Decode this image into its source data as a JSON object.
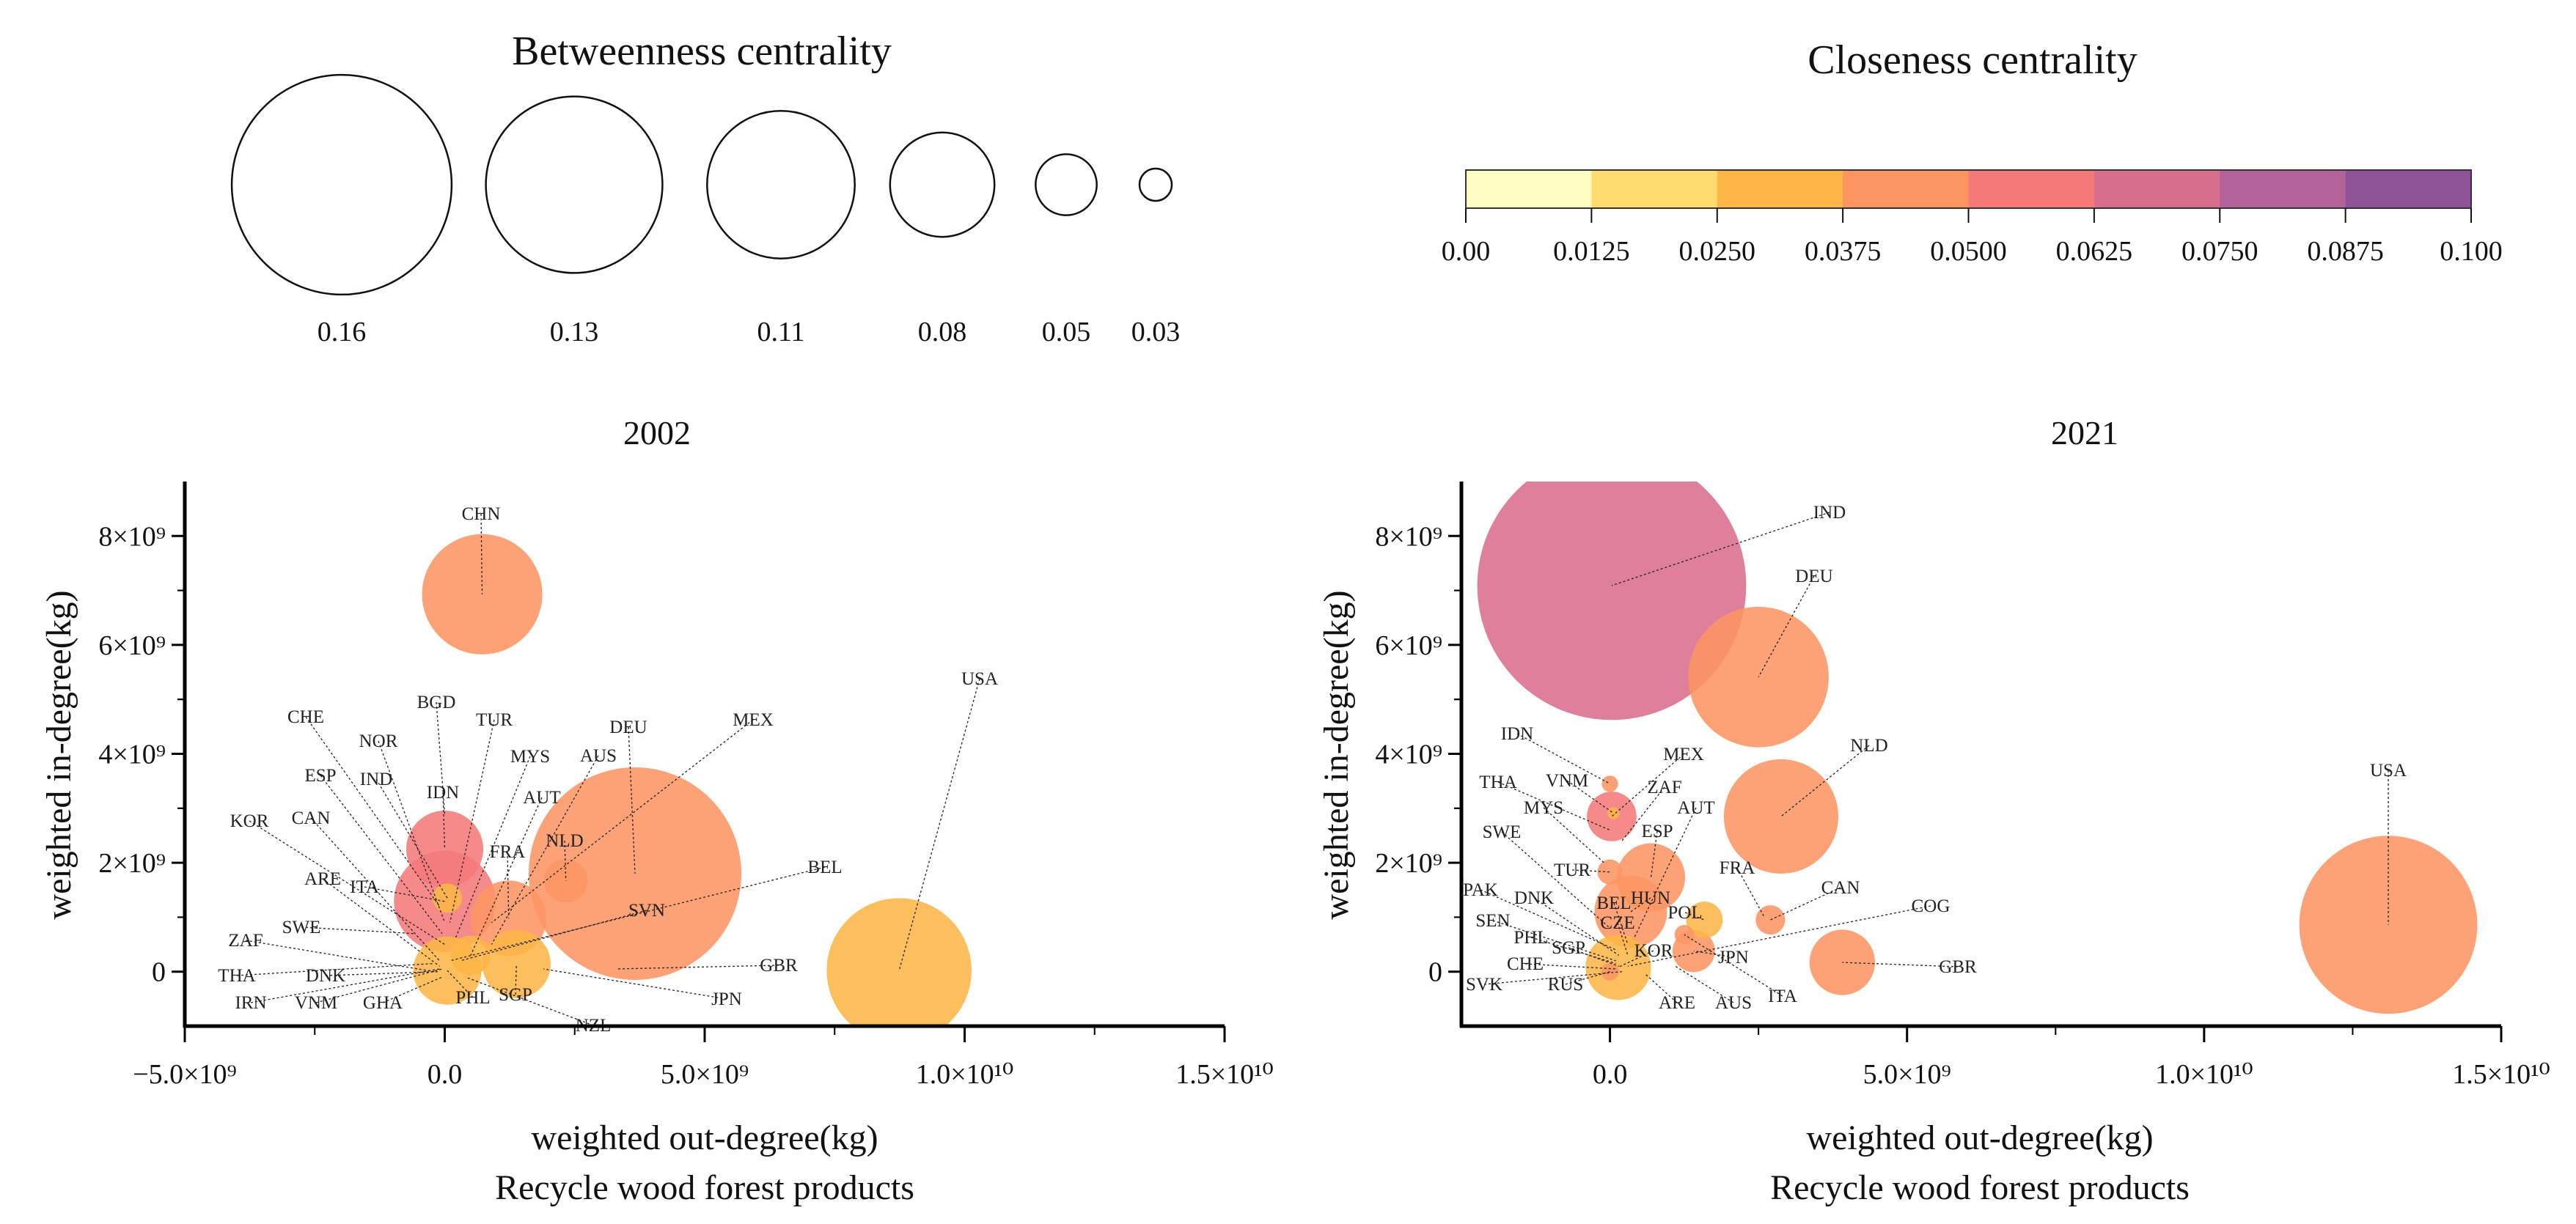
{
  "legends": {
    "size": {
      "title": "Betweenness centrality",
      "values": [
        "0.16",
        "0.13",
        "0.11",
        "0.08",
        "0.05",
        "0.03"
      ]
    },
    "color": {
      "title": "Closeness centrality",
      "ticks": [
        "0.00",
        "0.0125",
        "0.0250",
        "0.0375",
        "0.0500",
        "0.0625",
        "0.0750",
        "0.0875",
        "0.100"
      ],
      "colors": [
        "#fefcc0",
        "#fedc70",
        "#fdb647",
        "#fd9563",
        "#f47a7a",
        "#d96d8e",
        "#b4629a",
        "#8f5299"
      ]
    }
  },
  "chart_data": [
    {
      "type": "scatter",
      "title": "2002",
      "xlabel": "weighted out-degree(kg)",
      "subtitle": "Recycle wood forest products",
      "ylabel": "weighted in-degree(kg)",
      "xlim": [
        -5000000000.0,
        15000000000.0
      ],
      "ylim": [
        -1000000000.0,
        9000000000.0
      ],
      "xticks": [
        {
          "v": -5000000000.0,
          "t": "−5.0×10⁹"
        },
        {
          "v": 0,
          "t": "0.0"
        },
        {
          "v": 5000000000.0,
          "t": "5.0×10⁹"
        },
        {
          "v": 10000000000.0,
          "t": "1.0×10¹⁰"
        },
        {
          "v": 15000000000.0,
          "t": "1.5×10¹⁰"
        }
      ],
      "yticks": [
        {
          "v": 0,
          "t": "0"
        },
        {
          "v": 2000000000.0,
          "t": "2×10⁹"
        },
        {
          "v": 4000000000.0,
          "t": "4×10⁹"
        },
        {
          "v": 6000000000.0,
          "t": "6×10⁹"
        },
        {
          "v": 8000000000.0,
          "t": "8×10⁹"
        }
      ],
      "points": [
        {
          "label": "DEU",
          "x": 3660000000.0,
          "y": 1800000000.0,
          "betweenness": 0.155,
          "closeness": 0.045
        },
        {
          "label": "USA",
          "x": 8740000000.0,
          "y": 20000000.0,
          "betweenness": 0.108,
          "closeness": 0.032
        },
        {
          "label": "CHN",
          "x": 720000000.0,
          "y": 6930000000.0,
          "betweenness": 0.091,
          "closeness": 0.045
        },
        {
          "label": "ITA",
          "x": 0.0,
          "y": 1290000000.0,
          "betweenness": 0.078,
          "closeness": 0.055
        },
        {
          "label": "IDN",
          "x": 0.0,
          "y": 2250000000.0,
          "betweenness": 0.061,
          "closeness": 0.055
        },
        {
          "label": "FRA",
          "x": 1230000000.0,
          "y": 980000000.0,
          "betweenness": 0.06,
          "closeness": 0.045
        },
        {
          "label": "SGP",
          "x": 1380000000.0,
          "y": 140000000.0,
          "betweenness": 0.055,
          "closeness": 0.03
        },
        {
          "label": "PHL",
          "x": 50000000.0,
          "y": 20000000.0,
          "betweenness": 0.055,
          "closeness": 0.03
        },
        {
          "label": "NLD",
          "x": 2330000000.0,
          "y": 1670000000.0,
          "betweenness": 0.038,
          "closeness": 0.045
        },
        {
          "label": "AUT",
          "x": 500000000.0,
          "y": 300000000.0,
          "betweenness": 0.035,
          "closeness": 0.03
        },
        {
          "label": "IND",
          "x": 50000000.0,
          "y": 1350000000.0,
          "betweenness": 0.028,
          "closeness": 0.03
        },
        {
          "label": "BGD",
          "x": 0.0,
          "y": 2900000000.0,
          "betweenness": 0.0,
          "closeness": 0.03
        },
        {
          "label": "CHE",
          "x": -100000000.0,
          "y": 1200000000.0,
          "betweenness": 0.0,
          "closeness": 0.03
        },
        {
          "label": "NOR",
          "x": 0.0,
          "y": 900000000.0,
          "betweenness": 0.0,
          "closeness": 0.03
        },
        {
          "label": "TUR",
          "x": 100000000.0,
          "y": 900000000.0,
          "betweenness": 0.0,
          "closeness": 0.03
        },
        {
          "label": "MYS",
          "x": 200000000.0,
          "y": 600000000.0,
          "betweenness": 0.0,
          "closeness": 0.03
        },
        {
          "label": "AUS",
          "x": 900000000.0,
          "y": 500000000.0,
          "betweenness": 0.0,
          "closeness": 0.03
        },
        {
          "label": "MEX",
          "x": 900000000.0,
          "y": 900000000.0,
          "betweenness": 0.0,
          "closeness": 0.03
        },
        {
          "label": "ESP",
          "x": -50000000.0,
          "y": 700000000.0,
          "betweenness": 0.0,
          "closeness": 0.03
        },
        {
          "label": "KOR",
          "x": 0.0,
          "y": 500000000.0,
          "betweenness": 0.0,
          "closeness": 0.03
        },
        {
          "label": "CAN",
          "x": -100000000.0,
          "y": 200000000.0,
          "betweenness": 0.0,
          "closeness": 0.03
        },
        {
          "label": "ARE",
          "x": -100000000.0,
          "y": 100000000.0,
          "betweenness": 0.0,
          "closeness": 0.03
        },
        {
          "label": "BEL",
          "x": 100000000.0,
          "y": 200000000.0,
          "betweenness": 0.0,
          "closeness": 0.03
        },
        {
          "label": "SVN",
          "x": 300000000.0,
          "y": 200000000.0,
          "betweenness": 0.0,
          "closeness": 0.03
        },
        {
          "label": "SWE",
          "x": -600000000.0,
          "y": 700000000.0,
          "betweenness": 0.0,
          "closeness": 0.03
        },
        {
          "label": "ZAF",
          "x": -200000000.0,
          "y": 0.0,
          "betweenness": 0.0,
          "closeness": 0.03
        },
        {
          "label": "GBR",
          "x": 3300000000.0,
          "y": 50000000.0,
          "betweenness": 0.0,
          "closeness": 0.03
        },
        {
          "label": "THA",
          "x": -200000000.0,
          "y": 150000000.0,
          "betweenness": 0.0,
          "closeness": 0.03
        },
        {
          "label": "DNK",
          "x": -100000000.0,
          "y": 0.0,
          "betweenness": 0.0,
          "closeness": 0.03
        },
        {
          "label": "JPN",
          "x": 1900000000.0,
          "y": 50000000.0,
          "betweenness": 0.0,
          "closeness": 0.03
        },
        {
          "label": "IRN",
          "x": -100000000.0,
          "y": 50000000.0,
          "betweenness": 0.0,
          "closeness": 0.03
        },
        {
          "label": "VNM",
          "x": -50000000.0,
          "y": 50000000.0,
          "betweenness": 0.0,
          "closeness": 0.03
        },
        {
          "label": "GHA",
          "x": -50000000.0,
          "y": -100000000.0,
          "betweenness": 0.0,
          "closeness": 0.03
        },
        {
          "label": "NZL",
          "x": 400000000.0,
          "y": -100000000.0,
          "betweenness": 0.0,
          "closeness": 0.03
        }
      ]
    },
    {
      "type": "scatter",
      "title": "2021",
      "xlabel": "weighted out-degree(kg)",
      "subtitle": "Recycle wood forest products",
      "ylabel": "weighted in-degree(kg)",
      "xlim": [
        -2500000000.0,
        15000000000.0
      ],
      "ylim": [
        -1000000000.0,
        9000000000.0
      ],
      "xticks": [
        {
          "v": 0,
          "t": "0.0"
        },
        {
          "v": 5000000000.0,
          "t": "5.0×10⁹"
        },
        {
          "v": 10000000000.0,
          "t": "1.0×10¹⁰"
        },
        {
          "v": 15000000000.0,
          "t": "1.5×10¹⁰"
        }
      ],
      "yticks": [
        {
          "v": 0,
          "t": "0"
        },
        {
          "v": 2000000000.0,
          "t": "2×10⁹"
        },
        {
          "v": 4000000000.0,
          "t": "4×10⁹"
        },
        {
          "v": 6000000000.0,
          "t": "6×10⁹"
        },
        {
          "v": 8000000000.0,
          "t": "8×10⁹"
        }
      ],
      "points": [
        {
          "label": "IND",
          "x": 30000000.0,
          "y": 7090000000.0,
          "betweenness": 0.194,
          "closeness": 0.068
        },
        {
          "label": "USA",
          "x": 13100000000.0,
          "y": 860000000.0,
          "betweenness": 0.131,
          "closeness": 0.045
        },
        {
          "label": "DEU",
          "x": 2500000000.0,
          "y": 5410000000.0,
          "betweenness": 0.105,
          "closeness": 0.045
        },
        {
          "label": "NLD",
          "x": 2880000000.0,
          "y": 2850000000.0,
          "betweenness": 0.087,
          "closeness": 0.045
        },
        {
          "label": "ESP",
          "x": 690000000.0,
          "y": 1730000000.0,
          "betweenness": 0.055,
          "closeness": 0.045
        },
        {
          "label": "HUN",
          "x": 350000000.0,
          "y": 1100000000.0,
          "betweenness": 0.058,
          "closeness": 0.045
        },
        {
          "label": "GBR",
          "x": 3910000000.0,
          "y": 170000000.0,
          "betweenness": 0.053,
          "closeness": 0.045
        },
        {
          "label": "KOR",
          "x": 140000000.0,
          "y": 80000000.0,
          "betweenness": 0.053,
          "closeness": 0.032
        },
        {
          "label": "MEX",
          "x": 30000000.0,
          "y": 2850000000.0,
          "betweenness": 0.042,
          "closeness": 0.055
        },
        {
          "label": "JPN",
          "x": 1410000000.0,
          "y": 380000000.0,
          "betweenness": 0.037,
          "closeness": 0.045
        },
        {
          "label": "POL",
          "x": 1590000000.0,
          "y": 950000000.0,
          "betweenness": 0.033,
          "closeness": 0.032
        },
        {
          "label": "CAN",
          "x": 2700000000.0,
          "y": 950000000.0,
          "betweenness": 0.028,
          "closeness": 0.045
        },
        {
          "label": "TUR",
          "x": 0.0,
          "y": 1830000000.0,
          "betweenness": 0.025,
          "closeness": 0.045
        },
        {
          "label": "ITA",
          "x": 1250000000.0,
          "y": 680000000.0,
          "betweenness": 0.021,
          "closeness": 0.045
        },
        {
          "label": "RUS",
          "x": 0.0,
          "y": 0.0,
          "betweenness": 0.02,
          "closeness": 0.045
        },
        {
          "label": "IDN",
          "x": 0.0,
          "y": 3450000000.0,
          "betweenness": 0.019,
          "closeness": 0.045
        },
        {
          "label": "VNM",
          "x": 60000000.0,
          "y": 2910000000.0,
          "betweenness": 0.016,
          "closeness": 0.032
        },
        {
          "label": "FRA",
          "x": 2600000000.0,
          "y": 1000000000.0,
          "betweenness": 0.0,
          "closeness": 0.045
        },
        {
          "label": "THA",
          "x": 0.0,
          "y": 2600000000.0,
          "betweenness": 0.0,
          "closeness": 0.045
        },
        {
          "label": "ZAF",
          "x": 200000000.0,
          "y": 2400000000.0,
          "betweenness": 0.0,
          "closeness": 0.045
        },
        {
          "label": "MYS",
          "x": -100000000.0,
          "y": 2000000000.0,
          "betweenness": 0.0,
          "closeness": 0.045
        },
        {
          "label": "AUT",
          "x": 400000000.0,
          "y": 600000000.0,
          "betweenness": 0.0,
          "closeness": 0.045
        },
        {
          "label": "SWE",
          "x": 0.0,
          "y": 800000000.0,
          "betweenness": 0.0,
          "closeness": 0.045
        },
        {
          "label": "PAK",
          "x": 100000000.0,
          "y": 400000000.0,
          "betweenness": 0.0,
          "closeness": 0.045
        },
        {
          "label": "DNK",
          "x": 150000000.0,
          "y": 300000000.0,
          "betweenness": 0.0,
          "closeness": 0.045
        },
        {
          "label": "BEL",
          "x": 300000000.0,
          "y": 500000000.0,
          "betweenness": 0.0,
          "closeness": 0.045
        },
        {
          "label": "COG",
          "x": 300000000.0,
          "y": 100000000.0,
          "betweenness": 0.0,
          "closeness": 0.045
        },
        {
          "label": "SEN",
          "x": 100000000.0,
          "y": 200000000.0,
          "betweenness": 0.0,
          "closeness": 0.045
        },
        {
          "label": "CZE",
          "x": 300000000.0,
          "y": 300000000.0,
          "betweenness": 0.0,
          "closeness": 0.045
        },
        {
          "label": "PHL",
          "x": 100000000.0,
          "y": 150000000.0,
          "betweenness": 0.0,
          "closeness": 0.045
        },
        {
          "label": "SGP",
          "x": 150000000.0,
          "y": 100000000.0,
          "betweenness": 0.0,
          "closeness": 0.045
        },
        {
          "label": "CHE",
          "x": 100000000.0,
          "y": 50000000.0,
          "betweenness": 0.0,
          "closeness": 0.045
        },
        {
          "label": "SVK",
          "x": 200000000.0,
          "y": 0.0,
          "betweenness": 0.0,
          "closeness": 0.045
        },
        {
          "label": "ARE",
          "x": 600000000.0,
          "y": -50000000.0,
          "betweenness": 0.0,
          "closeness": 0.045
        },
        {
          "label": "AUS",
          "x": 1100000000.0,
          "y": 100000000.0,
          "betweenness": 0.0,
          "closeness": 0.045
        }
      ]
    }
  ]
}
